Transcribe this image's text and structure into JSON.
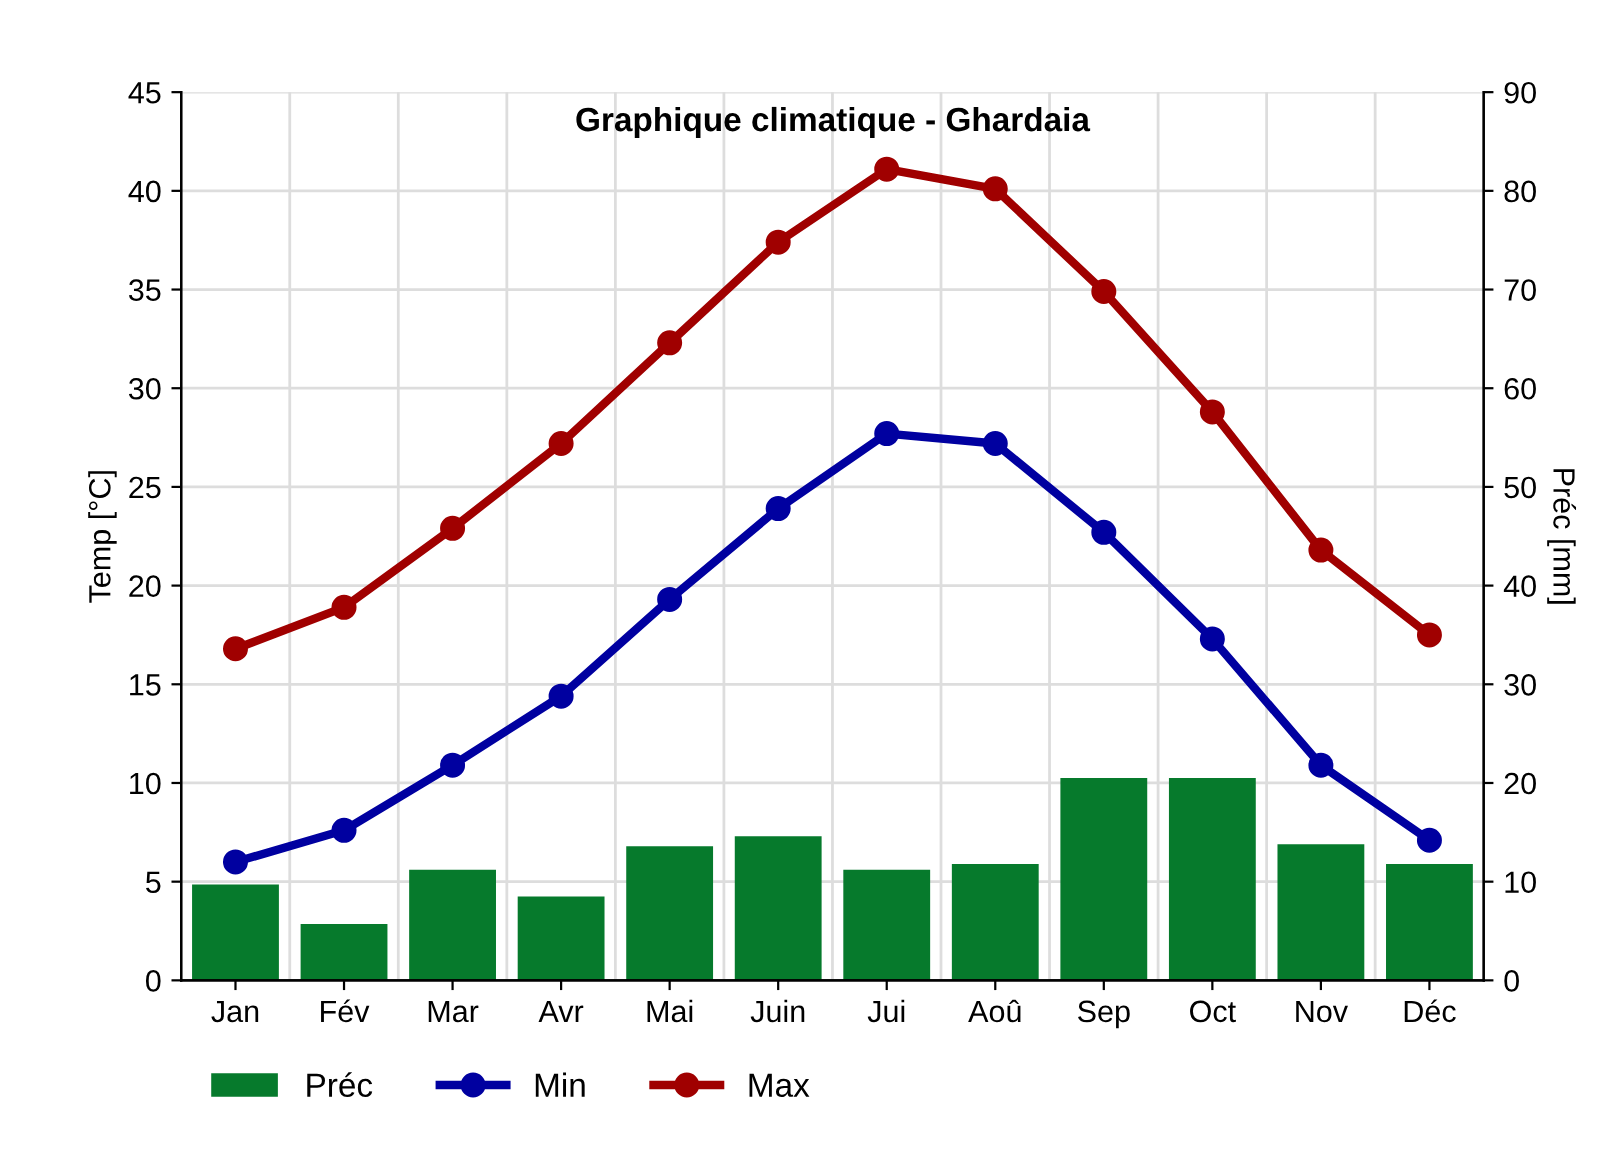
{
  "chart_data": {
    "type": "line",
    "title": "Graphique climatique - Ghardaia",
    "ylabel": "Temp [°C]",
    "y2label": "Préc [mm]",
    "categories": [
      "Jan",
      "Fév",
      "Mar",
      "Avr",
      "Mai",
      "Juin",
      "Jui",
      "Aoû",
      "Sep",
      "Oct",
      "Nov",
      "Déc"
    ],
    "series": [
      {
        "name": "Préc",
        "type": "bar",
        "axis": "y2",
        "color": "#067a2c",
        "values": [
          9.7,
          5.7,
          11.2,
          8.5,
          13.6,
          14.6,
          11.2,
          11.8,
          20.5,
          20.5,
          13.8,
          11.8
        ]
      },
      {
        "name": "Min",
        "color": "#0000a0",
        "values": [
          6.0,
          7.6,
          10.9,
          14.4,
          19.3,
          23.9,
          27.7,
          27.2,
          22.7,
          17.3,
          10.9,
          7.1
        ]
      },
      {
        "name": "Max",
        "color": "#a00000",
        "values": [
          16.8,
          18.9,
          22.9,
          27.2,
          32.3,
          37.4,
          41.1,
          40.1,
          34.9,
          28.8,
          21.8,
          17.5
        ]
      }
    ],
    "ylim": [
      0,
      45
    ],
    "yticks": [
      0,
      5,
      10,
      15,
      20,
      25,
      30,
      35,
      40,
      45
    ],
    "y2lim": [
      0,
      90
    ],
    "y2ticks": [
      0,
      10,
      20,
      30,
      40,
      50,
      60,
      70,
      80,
      90
    ],
    "grid": true,
    "legend": "bottom",
    "marker": "circle",
    "line_style": "solid"
  }
}
